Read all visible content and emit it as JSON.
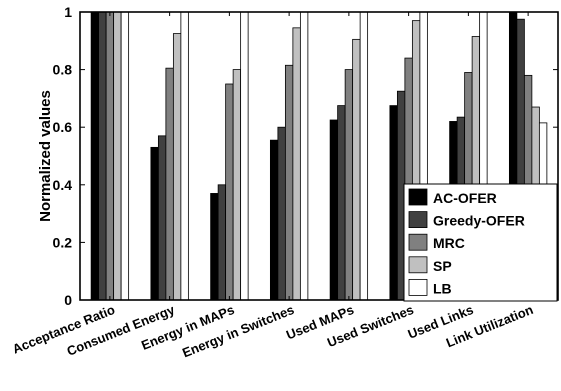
{
  "chart_data": {
    "type": "bar",
    "categories": [
      "Acceptance Ratio",
      "Consumed Energy",
      "Energy in MAPs",
      "Energy in Switches",
      "Used MAPs",
      "Used Switches",
      "Used Links",
      "Link Utilization"
    ],
    "series": [
      {
        "name": "AC-OFER",
        "color": "#000000",
        "values": [
          1.0,
          0.53,
          0.37,
          0.555,
          0.625,
          0.675,
          0.62,
          1.0
        ]
      },
      {
        "name": "Greedy-OFER",
        "color": "#404040",
        "values": [
          1.0,
          0.57,
          0.4,
          0.6,
          0.675,
          0.725,
          0.635,
          0.975
        ]
      },
      {
        "name": "MRC",
        "color": "#808080",
        "values": [
          1.0,
          0.805,
          0.75,
          0.815,
          0.8,
          0.84,
          0.79,
          0.78
        ]
      },
      {
        "name": "SP",
        "color": "#c0c0c0",
        "values": [
          1.0,
          0.925,
          0.8,
          0.945,
          0.905,
          0.97,
          0.915,
          0.67
        ]
      },
      {
        "name": "LB",
        "color": "#ffffff",
        "values": [
          1.0,
          1.0,
          1.0,
          1.0,
          1.0,
          1.0,
          1.0,
          0.615
        ]
      }
    ],
    "ylabel": "Normalized values",
    "xlabel": "",
    "ylim": [
      0,
      1
    ],
    "yticks": [
      "0",
      "0.2",
      "0.4",
      "0.6",
      "0.8",
      "1"
    ],
    "grid": false,
    "legend_position": "bottom-right"
  }
}
